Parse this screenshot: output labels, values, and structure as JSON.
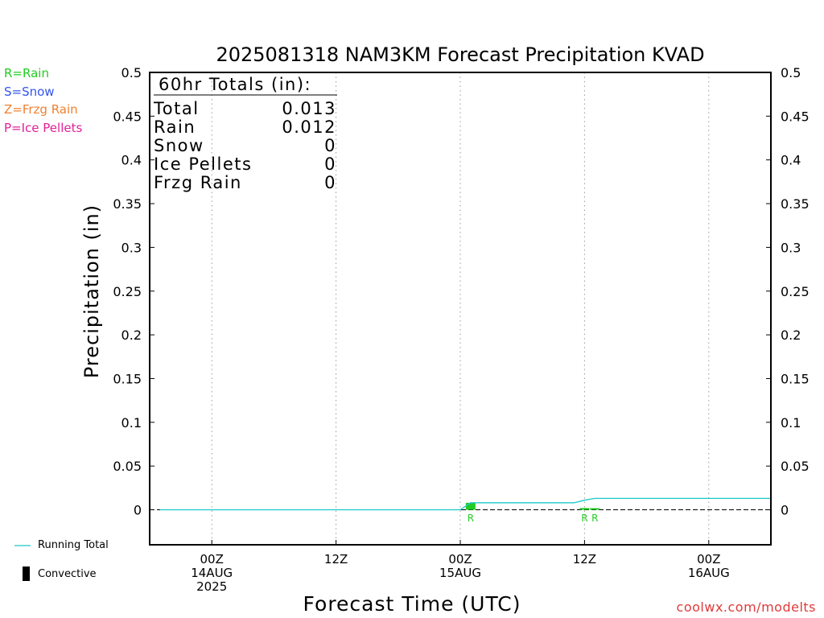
{
  "chart_data": {
    "type": "line",
    "title": "2025081318 NAM3KM Forecast Precipitation KVAD",
    "xlabel": "Forecast Time (UTC)",
    "ylabel": "Precipitation (in)",
    "ylim": [
      -0.04,
      0.5
    ],
    "y_ticks": [
      0,
      0.05,
      0.1,
      0.15,
      0.2,
      0.25,
      0.3,
      0.35,
      0.4,
      0.45,
      0.5
    ],
    "y_tick_labels": [
      "0",
      "0.05",
      "0.1",
      "0.15",
      "0.2",
      "0.25",
      "0.3",
      "0.35",
      "0.4",
      "0.45",
      "0.5"
    ],
    "xlim": [
      "2025-08-13T18Z",
      "2025-08-16T06Z"
    ],
    "x_ticks": [
      {
        "time": "2025-08-14T00Z",
        "lines": [
          "00Z",
          "14AUG",
          "2025"
        ]
      },
      {
        "time": "2025-08-14T12Z",
        "lines": [
          "12Z"
        ]
      },
      {
        "time": "2025-08-15T00Z",
        "lines": [
          "00Z",
          "15AUG"
        ]
      },
      {
        "time": "2025-08-15T12Z",
        "lines": [
          "12Z"
        ]
      },
      {
        "time": "2025-08-16T00Z",
        "lines": [
          "00Z",
          "16AUG"
        ]
      }
    ],
    "grid": "vertical dotted at x ticks",
    "series": [
      {
        "name": "Running Total",
        "color": "#1cc8c8",
        "x": [
          "2025-08-13T19Z",
          "2025-08-15T00Z",
          "2025-08-15T01Z",
          "2025-08-15T11Z",
          "2025-08-15T12Z",
          "2025-08-15T13Z",
          "2025-08-16T06Z"
        ],
        "y": [
          0,
          0,
          0.008,
          0.008,
          0.011,
          0.013,
          0.013
        ]
      }
    ],
    "precip_bars": [
      {
        "time": "2025-08-15T01Z",
        "type": "R",
        "value": 0.008,
        "color": "#22cc22"
      },
      {
        "time": "2025-08-15T12Z",
        "type": "R",
        "value": 0.002,
        "color": "#22cc22"
      },
      {
        "time": "2025-08-15T13Z",
        "type": "R",
        "value": 0.001,
        "color": "#22cc22"
      }
    ],
    "totals_box": {
      "heading": "60hr Totals (in):",
      "rows": [
        {
          "label": "Total",
          "value": "0.013"
        },
        {
          "label": "Rain",
          "value": "0.012"
        },
        {
          "label": "Snow",
          "value": "0"
        },
        {
          "label": "Ice Pellets",
          "value": "0"
        },
        {
          "label": "Frzg Rain",
          "value": "0"
        }
      ]
    }
  },
  "type_legend": [
    {
      "text": "R=Rain",
      "color": "#22cc22"
    },
    {
      "text": "S=Snow",
      "color": "#3355ee"
    },
    {
      "text": "Z=Frzg Rain",
      "color": "#f08030"
    },
    {
      "text": "P=Ice Pellets",
      "color": "#e0209a"
    }
  ],
  "bottom_legend": {
    "running_total": "Running Total",
    "convective": "Convective"
  },
  "credit": "coolwx.com/modelts"
}
